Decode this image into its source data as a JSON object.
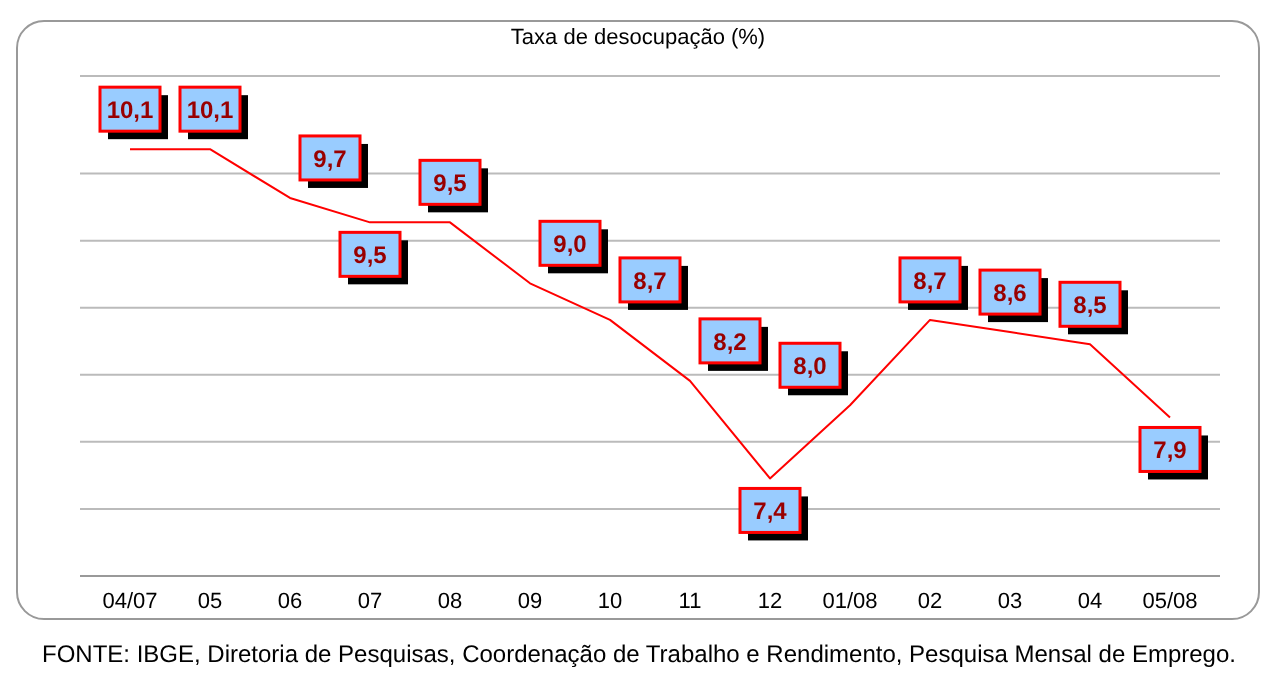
{
  "chart_data": {
    "type": "line",
    "title": "Taxa de desocupação (%)",
    "categories": [
      "04/07",
      "05",
      "06",
      "07",
      "08",
      "09",
      "10",
      "11",
      "12",
      "01/08",
      "02",
      "03",
      "04",
      "05/08"
    ],
    "series": [
      {
        "color": "#ff0000",
        "values": [
          10.1,
          10.1,
          9.7,
          9.5,
          9.5,
          9.0,
          8.7,
          8.2,
          7.4,
          8.0,
          8.7,
          8.6,
          8.5,
          7.9
        ],
        "value_labels": [
          "10,1",
          "10,1",
          "9,7",
          "9,5",
          "9,5",
          "9,0",
          "8,7",
          "8,2",
          "7,4",
          "8,0",
          "8,7",
          "8,6",
          "8,5",
          "7,9"
        ]
      }
    ],
    "grid": "y",
    "marker": "none",
    "tick_labels": "x",
    "annotations": [
      "FONTE: IBGE, Diretoria de Pesquisas, Coordenação de Trabalho e Rendimento, Pesquisa Mensal de Emprego."
    ]
  }
}
